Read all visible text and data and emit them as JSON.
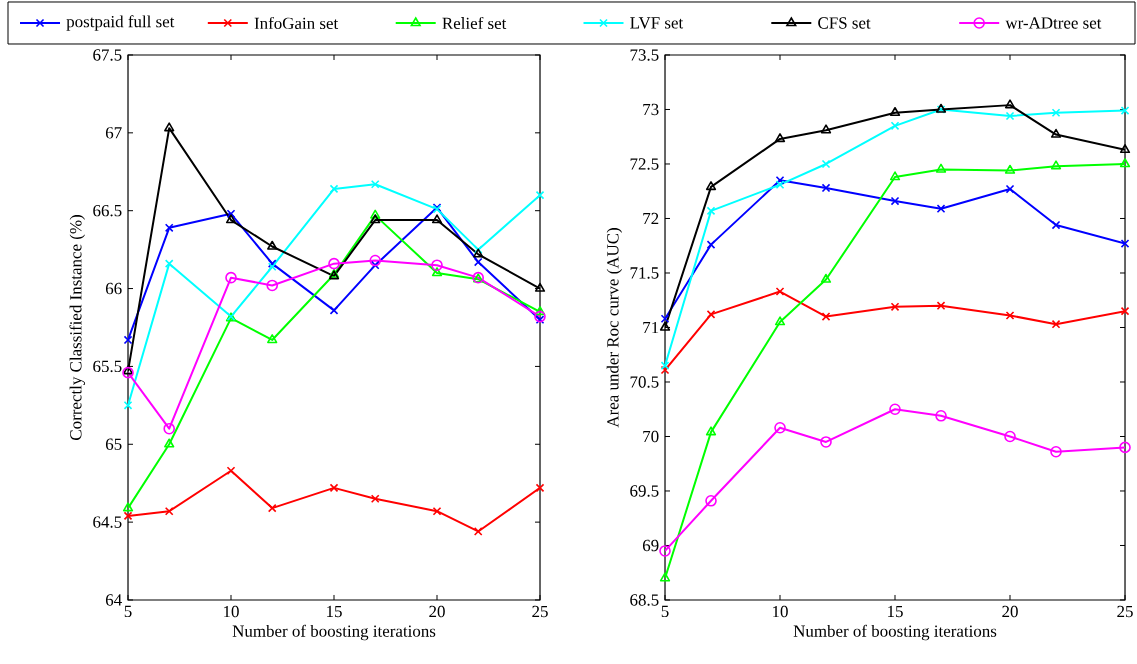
{
  "chart_data": [
    {
      "type": "line",
      "xlabel": "Number of boosting iterations",
      "ylabel": "Correctly Classified Instance (%)",
      "x": [
        5,
        7,
        10,
        12,
        15,
        17,
        20,
        22,
        25
      ],
      "xlim": [
        5,
        25
      ],
      "xticks": [
        5,
        10,
        15,
        20,
        25
      ],
      "ylim": [
        64,
        67.5
      ],
      "yticks": [
        64,
        64.5,
        65,
        65.5,
        66,
        66.5,
        67,
        67.5
      ],
      "grid": false,
      "legend": "top",
      "line_style": "solid",
      "series": [
        {
          "name": "postpaid full set",
          "color": "#0000ff",
          "marker": "cross",
          "values": [
            65.67,
            66.39,
            66.48,
            66.16,
            65.86,
            66.15,
            66.52,
            66.17,
            65.8
          ]
        },
        {
          "name": "InfoGain set",
          "color": "#ff0000",
          "marker": "cross",
          "values": [
            64.54,
            64.57,
            64.83,
            64.59,
            64.72,
            64.65,
            64.57,
            64.44,
            64.72
          ]
        },
        {
          "name": "Relief set",
          "color": "#00ff00",
          "marker": "triangle",
          "values": [
            64.59,
            65.0,
            65.81,
            65.67,
            66.09,
            66.47,
            66.1,
            66.06,
            65.85
          ]
        },
        {
          "name": "LVF set",
          "color": "#00ffff",
          "marker": "cross",
          "values": [
            65.25,
            66.16,
            65.82,
            66.14,
            66.64,
            66.67,
            66.51,
            66.25,
            66.6
          ]
        },
        {
          "name": "CFS set",
          "color": "#000000",
          "marker": "triangle",
          "values": [
            65.47,
            67.03,
            66.44,
            66.27,
            66.08,
            66.44,
            66.44,
            66.22,
            66.0
          ]
        },
        {
          "name": "wr-ADtree set",
          "color": "#ff00ff",
          "marker": "circle",
          "values": [
            65.46,
            65.1,
            66.07,
            66.02,
            66.16,
            66.18,
            66.15,
            66.07,
            65.82
          ]
        }
      ]
    },
    {
      "type": "line",
      "xlabel": "Number of boosting iterations",
      "ylabel": "Area under Roc curve (AUC)",
      "x": [
        5,
        7,
        10,
        12,
        15,
        17,
        20,
        22,
        25
      ],
      "xlim": [
        5,
        25
      ],
      "xticks": [
        5,
        10,
        15,
        20,
        25
      ],
      "ylim": [
        68.5,
        73.5
      ],
      "yticks": [
        68.5,
        69,
        69.5,
        70,
        70.5,
        71,
        71.5,
        72,
        72.5,
        73,
        73.5
      ],
      "grid": false,
      "line_style": "solid",
      "series": [
        {
          "color": "#0000ff",
          "marker": "cross",
          "values": [
            71.08,
            71.76,
            72.35,
            72.28,
            72.16,
            72.09,
            72.27,
            71.94,
            71.77
          ]
        },
        {
          "color": "#ff0000",
          "marker": "cross",
          "values": [
            70.61,
            71.12,
            71.33,
            71.1,
            71.19,
            71.2,
            71.11,
            71.03,
            71.15
          ]
        },
        {
          "color": "#00ff00",
          "marker": "triangle",
          "values": [
            68.7,
            70.04,
            71.05,
            71.44,
            72.38,
            72.45,
            72.44,
            72.48,
            72.5
          ]
        },
        {
          "color": "#00ffff",
          "marker": "cross",
          "values": [
            70.65,
            72.07,
            72.31,
            72.5,
            72.85,
            73.0,
            72.94,
            72.97,
            72.99
          ]
        },
        {
          "color": "#000000",
          "marker": "triangle",
          "values": [
            71.0,
            72.29,
            72.73,
            72.81,
            72.97,
            73.0,
            73.04,
            72.77,
            72.63
          ]
        },
        {
          "color": "#ff00ff",
          "marker": "circle",
          "values": [
            68.95,
            69.41,
            70.08,
            69.95,
            70.25,
            70.19,
            70.0,
            69.86,
            69.9
          ]
        }
      ]
    }
  ]
}
